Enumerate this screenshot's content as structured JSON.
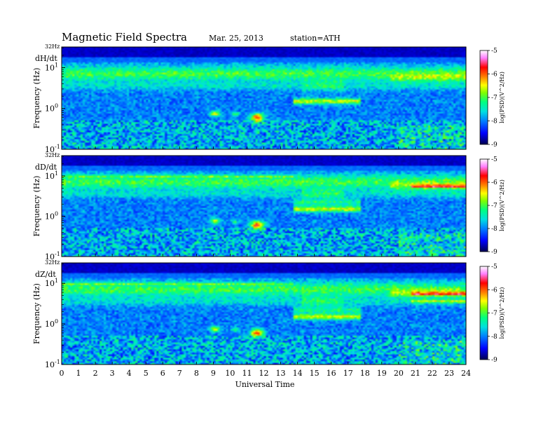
{
  "header": {
    "title": "Magnetic  Field  Spectra",
    "date": "Mar. 25, 2013",
    "station": "station=ATH"
  },
  "chart_data": {
    "type": "heatmap",
    "xlabel": "Universal Time",
    "xlim": [
      0,
      24
    ],
    "x_ticks": [
      "0",
      "1",
      "2",
      "3",
      "4",
      "5",
      "6",
      "7",
      "8",
      "9",
      "10",
      "11",
      "12",
      "13",
      "14",
      "15",
      "16",
      "17",
      "18",
      "19",
      "20",
      "21",
      "22",
      "23",
      "24"
    ],
    "yscale": "log",
    "ylim": [
      0.1,
      32
    ],
    "top_label": "32Hz",
    "y_ticks": [
      {
        "value": 10,
        "base": "10",
        "exp": "1"
      },
      {
        "value": 1,
        "base": "10",
        "exp": "0"
      },
      {
        "value": 0.1,
        "base": "10",
        "exp": "-1"
      }
    ],
    "colorbar": {
      "label": "log(PSD)(V^2/Hz)",
      "range": [
        -9,
        -5
      ],
      "ticks": [
        "-5",
        "-6",
        "-7",
        "-8",
        "-9"
      ],
      "colors": [
        "#000050",
        "#0000ff",
        "#0080ff",
        "#00e0e0",
        "#00ff80",
        "#80ff00",
        "#ffff00",
        "#ff8000",
        "#ff0000",
        "#ff80ff",
        "#ffffff"
      ]
    },
    "panels": [
      {
        "name": "dH/dt",
        "ylabel": "Frequency  (Hz)"
      },
      {
        "name": "dD/dt",
        "ylabel": "Frequency  (Hz)"
      },
      {
        "name": "dZ/dt",
        "ylabel": "Frequency  (Hz)"
      }
    ]
  }
}
